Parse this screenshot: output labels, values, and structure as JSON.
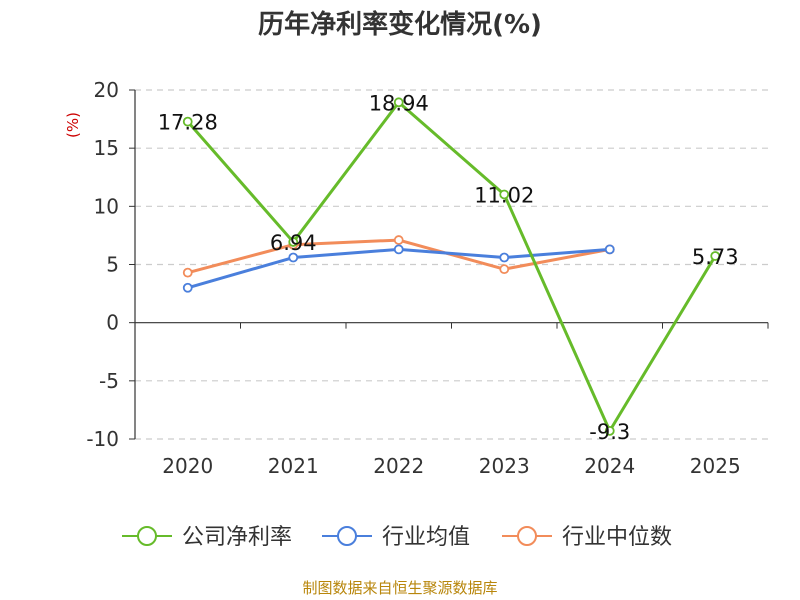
{
  "title": "历年净利率变化情况(%)",
  "source": "制图数据来自恒生聚源数据库",
  "chart_data": {
    "type": "line",
    "title": "历年净利率变化情况(%)",
    "ylabel": "(%)",
    "xlabel": "",
    "categories": [
      "2020",
      "2021",
      "2022",
      "2023",
      "2024",
      "2025"
    ],
    "ylim": [
      -10,
      20
    ],
    "yticks": [
      20,
      15,
      10,
      5,
      0,
      -5,
      -10
    ],
    "grid": true,
    "legend_position": "bottom",
    "series": [
      {
        "name": "公司净利率",
        "color": "#66bb2a",
        "values": [
          17.28,
          6.94,
          18.94,
          11.02,
          -9.3,
          5.73
        ],
        "labels": [
          "17.28",
          "6.94",
          "18.94",
          "11.02",
          "-9.3",
          "5.73"
        ]
      },
      {
        "name": "行业均值",
        "color": "#4a7fdc",
        "values": [
          3.0,
          5.6,
          6.3,
          5.6,
          6.3,
          null
        ]
      },
      {
        "name": "行业中位数",
        "color": "#f28c5a",
        "values": [
          4.3,
          6.7,
          7.1,
          4.6,
          6.3,
          null
        ]
      }
    ]
  }
}
